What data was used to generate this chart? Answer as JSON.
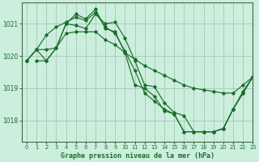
{
  "title": "Graphe pression niveau de la mer (hPa)",
  "background_color": "#cceedd",
  "grid_color": "#aaccbb",
  "line_color": "#1a6e2a",
  "marker_color": "#1a6e2a",
  "xlim": [
    -0.5,
    23
  ],
  "ylim": [
    1017.35,
    1021.65
  ],
  "yticks": [
    1018,
    1019,
    1020,
    1021
  ],
  "xticks": [
    0,
    1,
    2,
    3,
    4,
    5,
    6,
    7,
    8,
    9,
    10,
    11,
    12,
    13,
    14,
    15,
    16,
    17,
    18,
    19,
    20,
    21,
    22,
    23
  ],
  "series": [
    {
      "x": [
        0,
        1,
        2,
        3,
        4,
        5,
        6,
        7,
        8,
        9,
        10,
        11,
        12,
        13,
        14,
        15,
        16,
        17,
        18,
        19,
        20,
        21,
        22,
        23
      ],
      "y": [
        1019.85,
        1020.2,
        1020.2,
        1020.25,
        1020.7,
        1020.75,
        1020.75,
        1020.75,
        1020.5,
        1020.35,
        1020.1,
        1019.9,
        1019.7,
        1019.55,
        1019.4,
        1019.25,
        1019.1,
        1019.0,
        1018.95,
        1018.9,
        1018.85,
        1018.85,
        1019.1,
        1019.35
      ]
    },
    {
      "x": [
        0,
        1,
        2,
        3,
        4,
        5,
        6,
        7,
        8,
        9,
        10,
        11,
        12,
        13,
        14,
        15,
        16,
        17,
        18,
        19,
        20,
        21,
        22,
        23
      ],
      "y": [
        1019.85,
        1020.2,
        1020.65,
        1020.9,
        1021.05,
        1021.2,
        1021.1,
        1021.35,
        1020.9,
        1020.7,
        1020.15,
        1019.55,
        1018.85,
        1018.6,
        1018.35,
        1018.2,
        1017.65,
        1017.65,
        1017.65,
        1017.65,
        1017.75,
        1018.35,
        1018.9,
        1019.35
      ]
    },
    {
      "x": [
        0,
        1,
        2,
        3,
        4,
        5,
        6,
        7,
        8,
        9,
        10,
        11,
        12,
        13,
        14,
        15,
        16,
        17,
        18,
        19,
        20,
        21,
        22,
        23
      ],
      "y": [
        1019.85,
        1020.2,
        1019.85,
        1020.25,
        1021.0,
        1021.3,
        1021.15,
        1021.45,
        1020.85,
        1020.75,
        1020.1,
        1019.1,
        1019.0,
        1018.75,
        1018.3,
        1018.2,
        1017.65,
        1017.65,
        1017.65,
        1017.65,
        1017.75,
        1018.35,
        1018.85,
        1019.35
      ]
    },
    {
      "x": [
        1,
        2,
        3,
        4,
        5,
        6,
        7,
        8,
        9,
        10,
        11,
        12,
        13,
        14,
        15,
        16,
        17,
        18,
        19,
        20,
        21,
        22,
        23
      ],
      "y": [
        1019.85,
        1019.85,
        1020.25,
        1021.0,
        1020.95,
        1020.85,
        1021.3,
        1021.0,
        1021.05,
        1020.55,
        1019.85,
        1019.1,
        1019.05,
        1018.55,
        1018.25,
        1018.15,
        1017.65,
        1017.65,
        1017.65,
        1017.75,
        1018.35,
        1018.85,
        1019.35
      ]
    }
  ]
}
